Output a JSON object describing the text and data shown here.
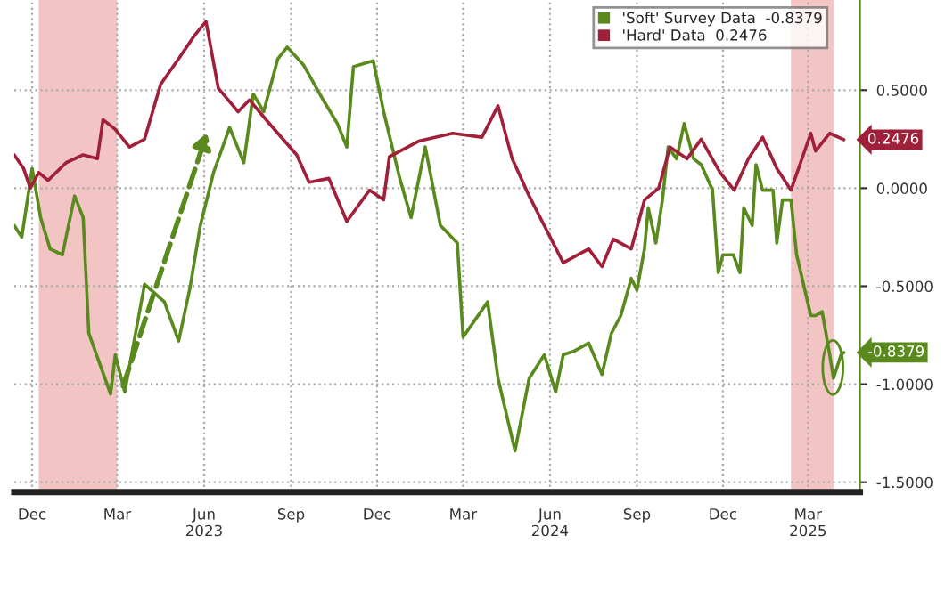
{
  "chart_data": {
    "type": "line",
    "xlim": [
      "2022-11-12",
      "2025-04-25"
    ],
    "ylim": [
      -1.55,
      0.96
    ],
    "xticks": [
      {
        "value": "2022-12-01",
        "label": "Dec"
      },
      {
        "value": "2023-03-01",
        "label": "Mar"
      },
      {
        "value": "2023-06-01",
        "label": "Jun\n2023"
      },
      {
        "value": "2023-09-01",
        "label": "Sep"
      },
      {
        "value": "2023-12-01",
        "label": "Dec"
      },
      {
        "value": "2024-03-01",
        "label": "Mar"
      },
      {
        "value": "2024-06-01",
        "label": "Jun\n2024"
      },
      {
        "value": "2024-09-01",
        "label": "Sep"
      },
      {
        "value": "2024-12-01",
        "label": "Dec"
      },
      {
        "value": "2025-03-01",
        "label": "Mar\n2025"
      }
    ],
    "yticks": [
      {
        "value": 0.5,
        "label": "0.5000"
      },
      {
        "value": 0.0,
        "label": "0.0000"
      },
      {
        "value": -0.5,
        "label": "-0.5000"
      },
      {
        "value": -1.0,
        "label": "-1.0000"
      },
      {
        "value": -1.5,
        "label": "-1.5000"
      }
    ],
    "grid": true,
    "legend": "top right",
    "line_style": "solid",
    "marker": "none",
    "bands": [
      {
        "axis": "x",
        "from": "2022-12-08",
        "to": "2023-03-01",
        "color": "#f2c4c4"
      },
      {
        "axis": "x",
        "from": "2025-02-11",
        "to": "2025-03-28",
        "color": "#f2c4c4"
      }
    ],
    "series": [
      {
        "name": "'Soft' Survey Data  -0.8379",
        "color": "#5a8a1e",
        "x": [
          "2022-11-12",
          "2022-11-20",
          "2022-12-01",
          "2022-12-10",
          "2022-12-20",
          "2023-01-02",
          "2023-01-15",
          "2023-01-24",
          "2023-01-30",
          "2023-02-22",
          "2023-02-27",
          "2023-03-09",
          "2023-03-30",
          "2023-04-20",
          "2023-05-05",
          "2023-05-17",
          "2023-05-28",
          "2023-06-11",
          "2023-06-28",
          "2023-07-13",
          "2023-07-23",
          "2023-08-03",
          "2023-08-18",
          "2023-08-28",
          "2023-09-14",
          "2023-10-05",
          "2023-10-20",
          "2023-10-30",
          "2023-11-06",
          "2023-11-27",
          "2023-12-08",
          "2023-12-25",
          "2024-01-06",
          "2024-01-21",
          "2024-02-06",
          "2024-02-24",
          "2024-03-01",
          "2024-03-27",
          "2024-04-07",
          "2024-04-25",
          "2024-05-10",
          "2024-05-26",
          "2024-06-07",
          "2024-06-15",
          "2024-06-27",
          "2024-07-12",
          "2024-07-26",
          "2024-08-05",
          "2024-08-15",
          "2024-08-26",
          "2024-09-01",
          "2024-09-09",
          "2024-09-13",
          "2024-09-21",
          "2024-09-28",
          "2024-10-04",
          "2024-10-13",
          "2024-10-21",
          "2024-10-31",
          "2024-11-08",
          "2024-11-20",
          "2024-11-26",
          "2024-12-01",
          "2024-12-12",
          "2024-12-19",
          "2024-12-23",
          "2025-01-01",
          "2025-01-05",
          "2025-01-12",
          "2025-01-23",
          "2025-01-27",
          "2025-02-02",
          "2025-02-11",
          "2025-02-17",
          "2025-03-04",
          "2025-03-09",
          "2025-03-16",
          "2025-03-24",
          "2025-03-28",
          "2025-04-05",
          "2025-04-08"
        ],
        "values": [
          -0.19,
          -0.25,
          0.1,
          -0.15,
          -0.31,
          -0.34,
          -0.04,
          -0.15,
          -0.74,
          -1.05,
          -0.85,
          -1.04,
          -0.49,
          -0.58,
          -0.78,
          -0.51,
          -0.19,
          0.08,
          0.31,
          0.13,
          0.48,
          0.39,
          0.66,
          0.72,
          0.63,
          0.45,
          0.33,
          0.21,
          0.62,
          0.65,
          0.39,
          0.05,
          -0.15,
          0.21,
          -0.19,
          -0.28,
          -0.76,
          -0.58,
          -0.97,
          -1.34,
          -0.97,
          -0.85,
          -1.04,
          -0.85,
          -0.83,
          -0.79,
          -0.95,
          -0.74,
          -0.65,
          -0.46,
          -0.52,
          -0.31,
          -0.1,
          -0.28,
          -0.06,
          0.21,
          0.15,
          0.33,
          0.15,
          0.12,
          -0.01,
          -0.43,
          -0.34,
          -0.34,
          -0.43,
          -0.1,
          -0.19,
          0.12,
          -0.01,
          -0.01,
          -0.28,
          -0.06,
          -0.06,
          -0.34,
          -0.65,
          -0.65,
          -0.63,
          -0.85,
          -0.97,
          -0.85,
          -0.8379
        ],
        "value_labels": [
          null,
          null,
          null,
          null,
          null,
          null,
          null,
          null,
          null,
          null,
          null,
          null,
          null,
          null,
          null,
          null,
          null,
          null,
          null,
          null,
          null,
          null,
          null,
          null,
          null,
          null,
          null,
          null,
          null,
          null,
          null,
          null,
          null,
          null,
          null,
          null,
          null,
          null,
          null,
          null,
          null,
          null,
          null,
          null,
          null,
          null,
          null,
          null,
          null,
          null,
          null,
          null,
          null,
          null,
          null,
          null,
          null,
          null,
          null,
          null,
          null,
          null,
          null,
          null,
          null,
          null,
          null,
          null,
          null,
          null,
          null,
          null,
          null,
          null,
          null,
          null,
          null,
          null,
          null,
          null,
          "-0.8379"
        ]
      },
      {
        "name": "'Hard' Data  0.2476",
        "color": "#a0203a",
        "x": [
          "2022-11-12",
          "2022-11-22",
          "2022-11-29",
          "2022-12-08",
          "2022-12-18",
          "2023-01-06",
          "2023-01-24",
          "2023-02-08",
          "2023-02-14",
          "2023-02-27",
          "2023-03-14",
          "2023-03-30",
          "2023-04-16",
          "2023-05-05",
          "2023-05-22",
          "2023-06-03",
          "2023-06-16",
          "2023-07-07",
          "2023-07-19",
          "2023-08-09",
          "2023-09-07",
          "2023-09-20",
          "2023-10-11",
          "2023-10-30",
          "2023-11-23",
          "2023-12-08",
          "2023-12-14",
          "2024-01-14",
          "2024-02-19",
          "2024-03-21",
          "2024-04-07",
          "2024-04-22",
          "2024-05-10",
          "2024-06-15",
          "2024-07-12",
          "2024-07-26",
          "2024-08-07",
          "2024-08-26",
          "2024-09-09",
          "2024-09-24",
          "2024-10-06",
          "2024-10-24",
          "2024-11-08",
          "2024-11-28",
          "2024-12-13",
          "2024-12-28",
          "2025-01-12",
          "2025-01-27",
          "2025-02-11",
          "2025-03-04",
          "2025-03-09",
          "2025-03-24",
          "2025-04-08"
        ],
        "values": [
          0.17,
          0.1,
          0.0,
          0.08,
          0.04,
          0.13,
          0.17,
          0.15,
          0.35,
          0.3,
          0.21,
          0.25,
          0.53,
          0.66,
          0.78,
          0.85,
          0.51,
          0.39,
          0.45,
          0.33,
          0.17,
          0.03,
          0.05,
          -0.17,
          -0.01,
          -0.06,
          0.16,
          0.24,
          0.28,
          0.26,
          0.42,
          0.15,
          -0.04,
          -0.38,
          -0.31,
          -0.4,
          -0.26,
          -0.31,
          -0.06,
          0.0,
          0.21,
          0.15,
          0.25,
          0.08,
          -0.01,
          0.15,
          0.26,
          0.1,
          -0.01,
          0.28,
          0.19,
          0.28,
          0.2476
        ],
        "value_labels": [
          null,
          null,
          null,
          null,
          null,
          null,
          null,
          null,
          null,
          null,
          null,
          null,
          null,
          null,
          null,
          null,
          null,
          null,
          null,
          null,
          null,
          null,
          null,
          null,
          null,
          null,
          null,
          null,
          null,
          null,
          null,
          null,
          null,
          null,
          null,
          null,
          null,
          null,
          null,
          null,
          null,
          null,
          null,
          null,
          null,
          null,
          null,
          null,
          null,
          null,
          null,
          null,
          "0.2476"
        ]
      }
    ]
  }
}
